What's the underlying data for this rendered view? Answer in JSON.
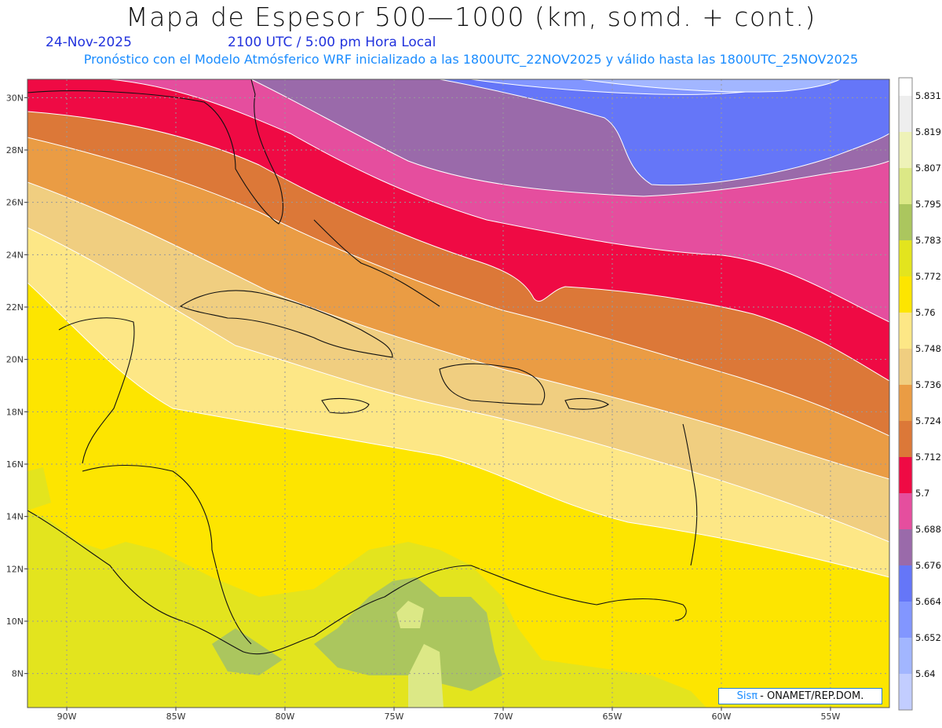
{
  "title": "Mapa de Espesor 500—1000 (km, somd. + cont.)",
  "date_label": "24-Nov-2025",
  "time_label": "2100 UTC / 5:00 pm Hora Local",
  "forecast_info": "Pronóstico con el Modelo Atmósferico WRF inicializado a las 1800UTC_22NOV2025 y válido hasta las  1800UTC_25NOV2025",
  "credit": {
    "brand": "Sisπ",
    "text": "- ONAMET/REP.DOM."
  },
  "lat_labels": [
    "30N",
    "28N",
    "26N",
    "24N",
    "22N",
    "20N",
    "18N",
    "16N",
    "14N",
    "12N",
    "10N",
    "8N"
  ],
  "lon_labels": [
    "90W",
    "85W",
    "80W",
    "75W",
    "70W",
    "65W",
    "60W",
    "55W"
  ],
  "colorbar": {
    "levels": [
      "5.64",
      "5.652",
      "5.664",
      "5.676",
      "5.688",
      "5.7",
      "5.712",
      "5.724",
      "5.736",
      "5.748",
      "5.76",
      "5.772",
      "5.783",
      "5.795",
      "5.807",
      "5.819",
      "5.831"
    ],
    "colors": [
      "#c2cdff",
      "#a2b6ff",
      "#8296ff",
      "#6576f8",
      "#9a6aaa",
      "#e54e9e",
      "#ef0a44",
      "#dc7838",
      "#ea9c44",
      "#f0ce80",
      "#fde786",
      "#fde500",
      "#e3e41e",
      "#abc65e",
      "#dce886",
      "#eef2b8",
      "#eeeeee"
    ]
  },
  "bands": [
    {
      "level": "5.664",
      "color": "#8296ff"
    },
    {
      "level": "5.676",
      "color": "#6576f8"
    },
    {
      "level": "5.688",
      "color": "#9a6aaa"
    },
    {
      "level": "5.7",
      "color": "#e54e9e"
    },
    {
      "level": "5.712",
      "color": "#ef0a44"
    },
    {
      "level": "5.724",
      "color": "#dc7838"
    },
    {
      "level": "5.736",
      "color": "#ea9c44"
    },
    {
      "level": "5.748",
      "color": "#f0ce80"
    },
    {
      "level": "5.76",
      "color": "#fde786"
    }
  ],
  "background_color": "#fde500",
  "land_color_low": "#e3e41e",
  "land_color_dry": "#abc65e"
}
